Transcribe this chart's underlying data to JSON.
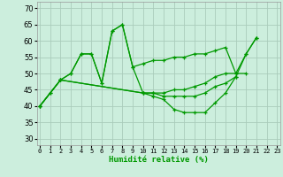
{
  "xlabel": "Humidité relative (%)",
  "background_color": "#cceedd",
  "grid_color": "#aaccbb",
  "line_color": "#009900",
  "ylim": [
    28,
    72
  ],
  "xlim": [
    -0.3,
    23.3
  ],
  "yticks": [
    30,
    35,
    40,
    45,
    50,
    55,
    60,
    65,
    70
  ],
  "xtick_labels": [
    "0",
    "1",
    "2",
    "3",
    "4",
    "5",
    "6",
    "7",
    "8",
    "9",
    "10",
    "11",
    "12",
    "13",
    "14",
    "15",
    "16",
    "17",
    "18",
    "19",
    "20",
    "21",
    "22",
    "23"
  ],
  "series": [
    {
      "x": [
        0,
        1,
        2,
        3,
        4,
        5,
        6,
        7,
        8,
        9,
        10,
        11,
        12,
        13,
        14,
        15,
        16,
        17,
        18,
        19,
        20,
        21
      ],
      "y": [
        40,
        44,
        48,
        50,
        56,
        56,
        47,
        63,
        65,
        52,
        53,
        54,
        54,
        55,
        55,
        56,
        56,
        57,
        58,
        50,
        56,
        61
      ]
    },
    {
      "x": [
        0,
        2,
        10,
        11,
        12,
        13,
        14,
        15,
        16,
        17,
        18,
        19
      ],
      "y": [
        40,
        48,
        44,
        44,
        43,
        43,
        43,
        43,
        44,
        46,
        47,
        49
      ]
    },
    {
      "x": [
        0,
        2,
        10,
        11,
        12,
        13,
        14,
        15,
        16,
        17,
        18,
        19,
        20
      ],
      "y": [
        40,
        48,
        44,
        44,
        44,
        45,
        45,
        46,
        47,
        49,
        50,
        50,
        50
      ]
    },
    {
      "x": [
        0,
        1,
        2,
        3,
        4,
        5,
        6,
        7,
        8,
        9,
        10,
        11,
        12,
        13,
        14,
        15,
        16,
        17,
        18,
        19,
        20,
        21
      ],
      "y": [
        40,
        44,
        48,
        50,
        56,
        56,
        47,
        63,
        65,
        52,
        44,
        43,
        42,
        39,
        38,
        38,
        38,
        41,
        44,
        49,
        56,
        61
      ]
    }
  ]
}
